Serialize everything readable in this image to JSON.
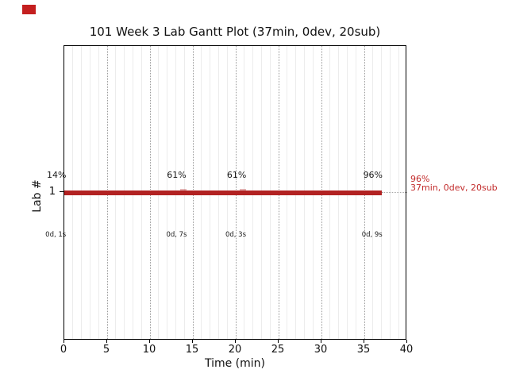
{
  "figure": {
    "legend_marker_color": "#c41f1f"
  },
  "chart_data": {
    "type": "bar",
    "subtype": "gantt",
    "title": "101 Week 3 Lab Gantt Plot (37min, 0dev, 20sub)",
    "xlabel": "Time (min)",
    "ylabel": "Lab #",
    "xlim": [
      0,
      40
    ],
    "xticks": [
      0,
      5,
      10,
      15,
      20,
      25,
      30,
      35,
      40
    ],
    "yticks": [
      "1"
    ],
    "grid": {
      "major_vertical": "dotted",
      "minor_vertical_every_min": 1,
      "horizontal_at_lab": "dotted"
    },
    "bars": [
      {
        "lab": "1",
        "start_min": 0,
        "duration_min": 37,
        "color": "#b22222",
        "pct_annotations": [
          {
            "text": "14%",
            "x_min": -0.9
          },
          {
            "text": "61%",
            "x_min": 13.1
          },
          {
            "text": "61%",
            "x_min": 20.1
          },
          {
            "text": "96%",
            "x_min": 36.0
          }
        ],
        "sub_annotations": [
          {
            "text": "0d, 1s",
            "x_min": -1.0
          },
          {
            "text": "0d, 7s",
            "x_min": 13.1
          },
          {
            "text": "0d, 3s",
            "x_min": 20.0
          },
          {
            "text": "0d, 9s",
            "x_min": 35.9
          }
        ],
        "event_marks_min": [
          13.9,
          20.8
        ],
        "end_label_lines": [
          "96%",
          "37min, 0dev, 20sub"
        ],
        "end_label_color": "#c22b2b"
      }
    ]
  }
}
